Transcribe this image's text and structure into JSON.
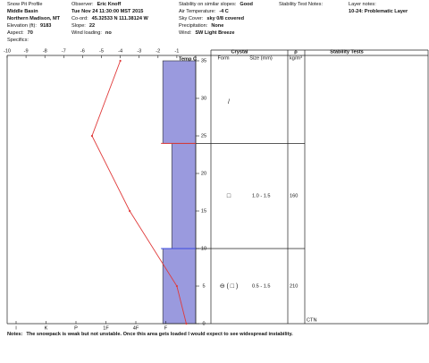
{
  "header": {
    "columns": [
      [
        {
          "text": "Snow Pit Profile"
        },
        {
          "value": "Middle Basin"
        },
        {
          "value": "Northern Madison, MT"
        },
        {
          "label": "Elevation (ft):",
          "value": 9183
        },
        {
          "label": "Aspect:",
          "value": 70
        },
        {
          "text": "Specifics:"
        }
      ],
      [
        {
          "label": "Observer:",
          "value": "Eric Knoff"
        },
        {
          "value": "Tue Nov 24 11:30:00 MST 2015"
        },
        {
          "label": "Co-ord:",
          "value": "45.32533 N 111.38124 W"
        },
        {
          "label": "Slope:",
          "value": 22
        },
        {
          "label": "Wind loading:",
          "value": "no"
        }
      ],
      [
        {
          "label": "Stability on similar slopes:",
          "value": "Good"
        },
        {
          "label": "Air Temperature:",
          "value": "-4 C"
        },
        {
          "label": "Sky Cover:",
          "value": "sky 0/8 covered"
        },
        {
          "label": "Precipitation:",
          "value": "None"
        },
        {
          "label": "Wind:",
          "value": "SW Light Breeze"
        }
      ],
      [
        {
          "text": "Stability Test Notes:"
        }
      ],
      [
        {
          "text": "Layer notes:"
        },
        {
          "value": "10-24: Problematic Layer"
        }
      ]
    ]
  },
  "chart_data": {
    "type": "snowpit",
    "x_label": "Temp C",
    "xlim": [
      -10,
      0
    ],
    "xticks": [
      -10,
      -9,
      -8,
      -7,
      -6,
      -5,
      -4,
      -3,
      -2,
      -1
    ],
    "ylim": [
      0,
      35
    ],
    "yticks": [
      0,
      5,
      10,
      15,
      20,
      25,
      30,
      35
    ],
    "temperature": {
      "color": "#e03a3a",
      "depths": [
        35,
        25,
        15,
        5,
        0
      ],
      "values": [
        -4,
        -5.5,
        -3.5,
        -1,
        -0.5
      ]
    },
    "hardness_lim": [
      0,
      6
    ],
    "hardness_ticks": [
      {
        "value": 6,
        "label": "I"
      },
      {
        "value": 5,
        "label": "K"
      },
      {
        "value": 4,
        "label": "P"
      },
      {
        "value": 3,
        "label": "1F"
      },
      {
        "value": 2,
        "label": "4F"
      },
      {
        "value": 1,
        "label": "F"
      }
    ],
    "layer_color": "#9a9ade",
    "columns": {
      "crystal": "Crystal",
      "form": "Form",
      "size": "Size (mm)",
      "density": "ρ",
      "density_unit": "kg/m³",
      "stability": "Stability Tests"
    },
    "layers": [
      {
        "bottom": 0,
        "top": 10,
        "hardness": 1.1,
        "form": "⊖ ( □ )",
        "size": "0.5 - 1.5",
        "density": 210
      },
      {
        "bottom": 10,
        "top": 24,
        "hardness": 0.8,
        "form": "□",
        "size": "1.0 - 1.5",
        "density": 160
      },
      {
        "bottom": 24,
        "top": 35,
        "hardness": 1.1,
        "form": "/"
      }
    ],
    "boundaries": [
      {
        "depth": 24,
        "color": "#e03a3a"
      },
      {
        "depth": 10,
        "color": "#3a4ae0"
      }
    ],
    "stability_tests": [
      "CTN"
    ]
  },
  "notes": {
    "label": "Notes:",
    "text": "The snowpack is weak but not unstable. Once this area gets loaded I would expect to see widespread instability."
  }
}
